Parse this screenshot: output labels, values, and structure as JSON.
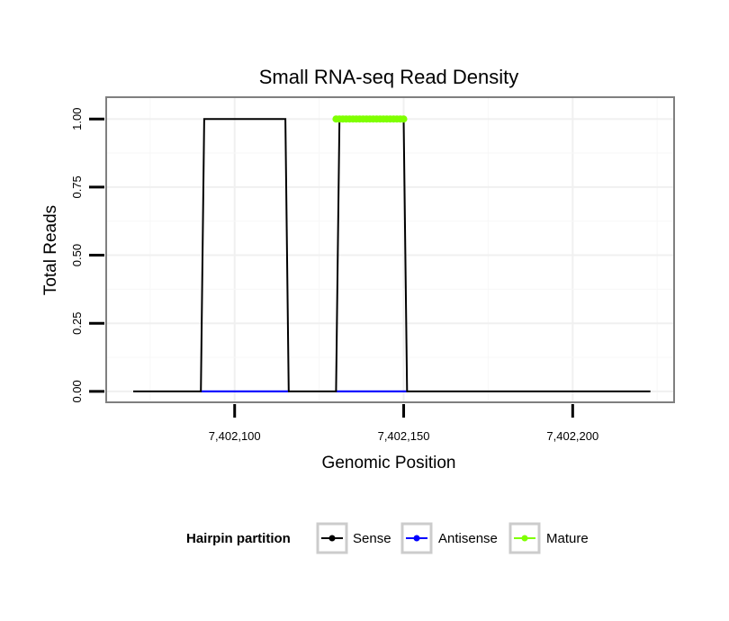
{
  "chart_data": {
    "type": "line",
    "title": "Small RNA-seq Read Density",
    "xlabel": "Genomic Position",
    "ylabel": "Total Reads",
    "xlim": [
      7402062,
      7402230
    ],
    "ylim": [
      -0.04,
      1.08
    ],
    "x_ticks": [
      7402100,
      7402150,
      7402200
    ],
    "x_tick_labels": [
      "7,402,100",
      "7,402,150",
      "7,402,200"
    ],
    "y_ticks": [
      0,
      0.25,
      0.5,
      0.75,
      1
    ],
    "y_tick_labels": [
      "0.00",
      "0.25",
      "0.50",
      "0.75",
      "1.00"
    ],
    "grid": true,
    "legend": {
      "title": "Hairpin partition",
      "position": "bottom"
    },
    "series": [
      {
        "name": "Sense",
        "color": "#000000",
        "x": [
          7402070,
          7402090,
          7402091,
          7402115,
          7402116,
          7402130,
          7402131,
          7402150,
          7402151,
          7402223
        ],
        "y": [
          0,
          0,
          1,
          1,
          0,
          0,
          1,
          1,
          0,
          0
        ]
      },
      {
        "name": "Antisense",
        "color": "#0000ff",
        "x": [
          7402090,
          7402116,
          7402130,
          7402151
        ],
        "y": [
          0,
          0,
          null,
          0
        ],
        "segments": [
          [
            7402090,
            7402116
          ],
          [
            7402130,
            7402151
          ]
        ]
      },
      {
        "name": "Mature",
        "color": "#7fff00",
        "x": [
          7402130,
          7402150
        ],
        "y": [
          1,
          1
        ]
      }
    ]
  }
}
